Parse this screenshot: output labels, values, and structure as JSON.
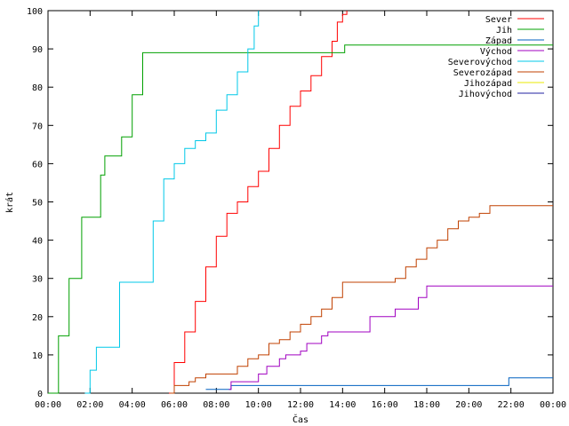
{
  "chart_data": {
    "type": "line",
    "title": "",
    "xlabel": "Čas",
    "ylabel": "krát",
    "xlim": [
      0,
      24
    ],
    "ylim": [
      0,
      100
    ],
    "x_ticks": [
      {
        "value": 0,
        "label": "00:00"
      },
      {
        "value": 2,
        "label": "02:00"
      },
      {
        "value": 4,
        "label": "04:00"
      },
      {
        "value": 6,
        "label": "06:00"
      },
      {
        "value": 8,
        "label": "08:00"
      },
      {
        "value": 10,
        "label": "10:00"
      },
      {
        "value": 12,
        "label": "12:00"
      },
      {
        "value": 14,
        "label": "14:00"
      },
      {
        "value": 16,
        "label": "16:00"
      },
      {
        "value": 18,
        "label": "18:00"
      },
      {
        "value": 20,
        "label": "20:00"
      },
      {
        "value": 22,
        "label": "22:00"
      },
      {
        "value": 24,
        "label": "00:00"
      }
    ],
    "y_ticks": [
      0,
      10,
      20,
      30,
      40,
      50,
      60,
      70,
      80,
      90,
      100
    ],
    "grid": false,
    "legend_position": "top-right",
    "series": [
      {
        "name": "Sever",
        "color": "#ff0000",
        "x": [
          5.75,
          6.0,
          6.5,
          7.0,
          7.5,
          8.0,
          8.5,
          9.0,
          9.5,
          10.0,
          10.5,
          11.0,
          11.5,
          12.0,
          12.5,
          13.0,
          13.5,
          13.75,
          14.0,
          14.2
        ],
        "y": [
          0,
          8,
          16,
          24,
          33,
          41,
          47,
          50,
          54,
          58,
          64,
          70,
          75,
          79,
          83,
          88,
          92,
          97,
          99,
          100
        ]
      },
      {
        "name": "Jih",
        "color": "#00a000",
        "x": [
          0.0,
          0.5,
          1.0,
          1.6,
          2.0,
          2.5,
          2.7,
          3.4,
          3.5,
          4.0,
          4.5,
          14.0,
          14.1,
          24.0
        ],
        "y": [
          0,
          15,
          30,
          46,
          46,
          57,
          62,
          62,
          67,
          78,
          89,
          89,
          91,
          91
        ]
      },
      {
        "name": "Západ",
        "color": "#0060c0",
        "x": [
          7.5,
          8.6,
          8.7,
          21.8,
          21.9,
          24.0
        ],
        "y": [
          1,
          1,
          2,
          2,
          4,
          4
        ]
      },
      {
        "name": "Východ",
        "color": "#a000c0",
        "x": [
          8.6,
          8.7,
          10.0,
          10.4,
          11.0,
          11.3,
          12.0,
          12.3,
          13.0,
          13.3,
          15.0,
          15.3,
          16.5,
          16.8,
          17.5,
          17.6,
          18.0,
          24.0
        ],
        "y": [
          1,
          3,
          5,
          7,
          9,
          10,
          11,
          13,
          15,
          16,
          16,
          20,
          22,
          22,
          22,
          25,
          28,
          28
        ]
      },
      {
        "name": "Severovýchod",
        "color": "#00c8e8",
        "x": [
          1.75,
          2.0,
          2.3,
          3.0,
          3.4,
          4.5,
          5.0,
          5.5,
          6.0,
          6.5,
          7.0,
          7.5,
          8.0,
          8.5,
          9.0,
          9.5,
          9.8,
          10.0
        ],
        "y": [
          0,
          6,
          12,
          12,
          29,
          29,
          45,
          56,
          60,
          64,
          66,
          68,
          74,
          78,
          84,
          90,
          96,
          100
        ]
      },
      {
        "name": "Severozápad",
        "color": "#c04000",
        "x": [
          5.8,
          6.0,
          6.7,
          7.0,
          7.5,
          8.0,
          9.0,
          9.5,
          10.0,
          10.5,
          11.0,
          11.5,
          12.0,
          12.5,
          13.0,
          13.5,
          14.0,
          16.0,
          16.5,
          17.0,
          17.5,
          18.0,
          18.5,
          19.0,
          19.5,
          20.0,
          20.5,
          21.0,
          24.0
        ],
        "y": [
          0,
          2,
          3,
          4,
          5,
          5,
          7,
          9,
          10,
          13,
          14,
          16,
          18,
          20,
          22,
          25,
          29,
          29,
          30,
          33,
          35,
          38,
          40,
          43,
          45,
          46,
          47,
          49,
          49
        ]
      },
      {
        "name": "Jihozápad",
        "color": "#e8e800",
        "x": [],
        "y": []
      },
      {
        "name": "Jihovýchod",
        "color": "#2020a0",
        "x": [],
        "y": []
      }
    ]
  }
}
